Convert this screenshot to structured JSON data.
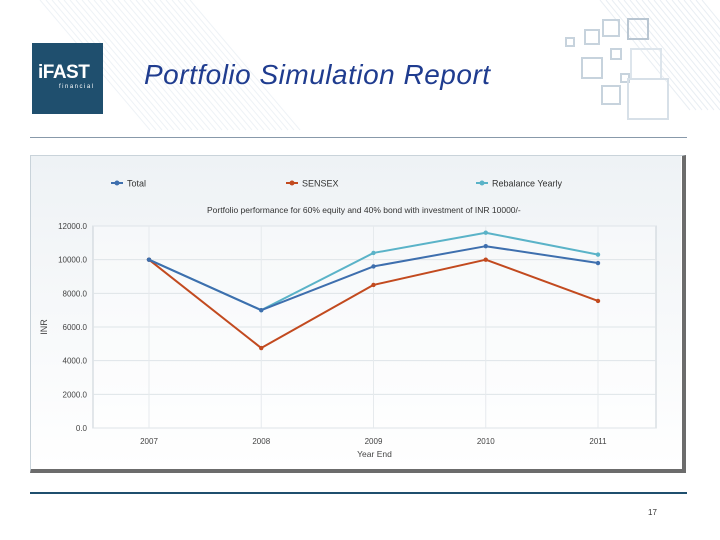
{
  "header": {
    "logo_name": "iFAST",
    "logo_subtitle": "financial",
    "title": "Portfolio Simulation Report"
  },
  "footer": {
    "page_number": "17"
  },
  "colors": {
    "brand": "#1f4f6e",
    "title": "#1f3c8f",
    "total": "#3e6fae",
    "sensex": "#c24a1f",
    "rebalance": "#5ab3c8"
  },
  "chart_data": {
    "type": "line",
    "title": "Portfolio performance for 60% equity and 40% bond with investment of INR 10000/-",
    "xlabel": "Year End",
    "ylabel": "INR",
    "ylim": [
      0,
      12000
    ],
    "yticks": [
      "0.0",
      "2000.0",
      "4000.0",
      "6000.0",
      "8000.0",
      "10000.0",
      "12000.0"
    ],
    "categories": [
      "2007",
      "2008",
      "2009",
      "2010",
      "2011"
    ],
    "grid": true,
    "legend_position": "top",
    "series": [
      {
        "name": "Total",
        "color": "#3e6fae",
        "values": [
          10000,
          7000,
          9600,
          10800,
          9800
        ]
      },
      {
        "name": "SENSEX",
        "color": "#c24a1f",
        "values": [
          10000,
          4750,
          8500,
          10000,
          7550
        ]
      },
      {
        "name": "Rebalance Yearly",
        "color": "#5ab3c8",
        "values": [
          10000,
          7000,
          10400,
          11600,
          10300
        ]
      }
    ]
  }
}
